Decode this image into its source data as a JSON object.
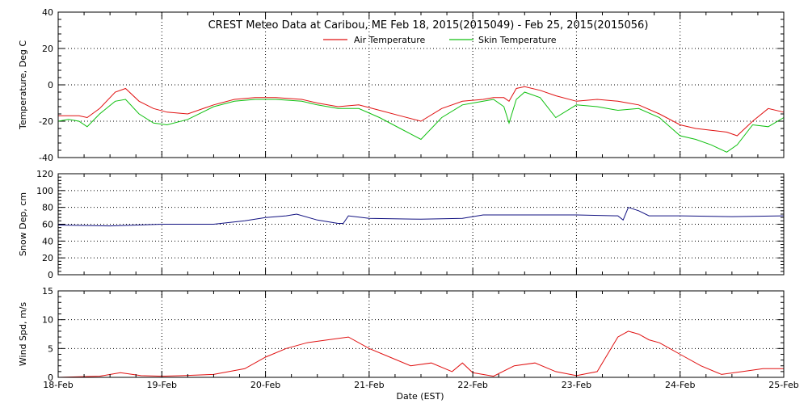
{
  "title": "CREST Meteo Data at Caribou, ME   Feb 18, 2015(2015049) - Feb 25, 2015(2015056)",
  "xlabel": "Date (EST)",
  "x_ticks": [
    "18-Feb",
    "19-Feb",
    "20-Feb",
    "21-Feb",
    "22-Feb",
    "23-Feb",
    "24-Feb",
    "25-Feb"
  ],
  "colors": {
    "air": "#e01010",
    "skin": "#10c010",
    "snow": "#101080",
    "wind": "#e01010"
  },
  "chart_data": [
    {
      "type": "line",
      "ylabel": "Temperature, Deg C",
      "ylim": [
        -40,
        40
      ],
      "yticks": [
        "-40",
        "-20",
        "0",
        "20",
        "40"
      ],
      "xlim_days": [
        0,
        7
      ],
      "legend": "top-center",
      "series": [
        {
          "name": "Air Temperature",
          "color": "#e01010",
          "x": [
            0,
            0.1,
            0.2,
            0.28,
            0.4,
            0.55,
            0.65,
            0.78,
            0.92,
            1.05,
            1.25,
            1.5,
            1.7,
            1.9,
            2.1,
            2.35,
            2.5,
            2.7,
            2.9,
            3.1,
            3.3,
            3.5,
            3.7,
            3.9,
            4.1,
            4.2,
            4.3,
            4.35,
            4.42,
            4.5,
            4.65,
            4.8,
            5.0,
            5.2,
            5.4,
            5.6,
            5.8,
            6.0,
            6.15,
            6.3,
            6.45,
            6.55,
            6.7,
            6.85,
            7.0
          ],
          "y": [
            -17,
            -17,
            -17,
            -18,
            -13,
            -4,
            -2,
            -9,
            -13,
            -15,
            -16,
            -11,
            -8,
            -7,
            -7,
            -8,
            -10,
            -12,
            -11,
            -14,
            -17,
            -20,
            -13,
            -9,
            -8,
            -7,
            -7,
            -9,
            -2,
            -1,
            -3,
            -6,
            -9,
            -8,
            -9,
            -11,
            -16,
            -22,
            -24,
            -25,
            -26,
            -28,
            -20,
            -13,
            -15
          ]
        },
        {
          "name": "Skin Temperature",
          "color": "#10c010",
          "x": [
            0,
            0.1,
            0.2,
            0.28,
            0.4,
            0.55,
            0.65,
            0.78,
            0.92,
            1.05,
            1.25,
            1.5,
            1.7,
            1.9,
            2.1,
            2.35,
            2.5,
            2.7,
            2.9,
            3.1,
            3.3,
            3.5,
            3.7,
            3.9,
            4.1,
            4.2,
            4.3,
            4.35,
            4.42,
            4.5,
            4.65,
            4.8,
            5.0,
            5.2,
            5.4,
            5.6,
            5.8,
            6.0,
            6.15,
            6.3,
            6.45,
            6.55,
            6.7,
            6.85,
            7.0
          ],
          "y": [
            -20,
            -19,
            -20,
            -23,
            -16,
            -9,
            -8,
            -16,
            -21,
            -22,
            -19,
            -12,
            -9,
            -8,
            -8,
            -9,
            -11,
            -13,
            -13,
            -18,
            -24,
            -30,
            -18,
            -11,
            -9,
            -8,
            -12,
            -21,
            -8,
            -4,
            -7,
            -18,
            -11,
            -12,
            -14,
            -13,
            -18,
            -28,
            -30,
            -33,
            -37,
            -33,
            -22,
            -23,
            -18
          ]
        }
      ]
    },
    {
      "type": "line",
      "ylabel": "Snow Dep, cm",
      "ylim": [
        0,
        120
      ],
      "yticks": [
        "0",
        "20",
        "40",
        "60",
        "80",
        "100",
        "120"
      ],
      "xlim_days": [
        0,
        7
      ],
      "series": [
        {
          "name": "",
          "color": "#101080",
          "x": [
            0,
            0.5,
            1.0,
            1.5,
            1.8,
            2.0,
            2.2,
            2.3,
            2.5,
            2.7,
            2.75,
            2.8,
            3.0,
            3.5,
            3.9,
            4.1,
            4.5,
            5.0,
            5.4,
            5.45,
            5.5,
            5.6,
            5.7,
            6.0,
            6.5,
            7.0
          ],
          "y": [
            59,
            58,
            60,
            60,
            64,
            68,
            70,
            72,
            65,
            61,
            61,
            70,
            67,
            66,
            67,
            71,
            71,
            71,
            70,
            65,
            80,
            76,
            70,
            70,
            69,
            70
          ]
        }
      ]
    },
    {
      "type": "line",
      "ylabel": "Wind Spd, m/s",
      "ylim": [
        0,
        15
      ],
      "yticks": [
        "0",
        "5",
        "10",
        "15"
      ],
      "xlim_days": [
        0,
        7
      ],
      "series": [
        {
          "name": "",
          "color": "#e01010",
          "x": [
            0,
            0.4,
            0.6,
            0.8,
            1.0,
            1.2,
            1.5,
            1.8,
            2.0,
            2.2,
            2.4,
            2.6,
            2.8,
            3.0,
            3.2,
            3.4,
            3.6,
            3.8,
            3.9,
            4.0,
            4.2,
            4.4,
            4.6,
            4.8,
            5.0,
            5.2,
            5.3,
            5.4,
            5.5,
            5.6,
            5.7,
            5.8,
            5.9,
            6.0,
            6.2,
            6.4,
            6.6,
            6.8,
            7.0
          ],
          "y": [
            0,
            0.2,
            0.8,
            0.3,
            0.2,
            0.3,
            0.5,
            1.5,
            3.5,
            5,
            6,
            6.5,
            7,
            5,
            3.5,
            2,
            2.5,
            1,
            2.5,
            0.8,
            0.2,
            2,
            2.5,
            1,
            0.3,
            1,
            4,
            7,
            8,
            7.5,
            6.5,
            6,
            5,
            4,
            2,
            0.5,
            1,
            1.5,
            1.5
          ]
        }
      ]
    }
  ]
}
